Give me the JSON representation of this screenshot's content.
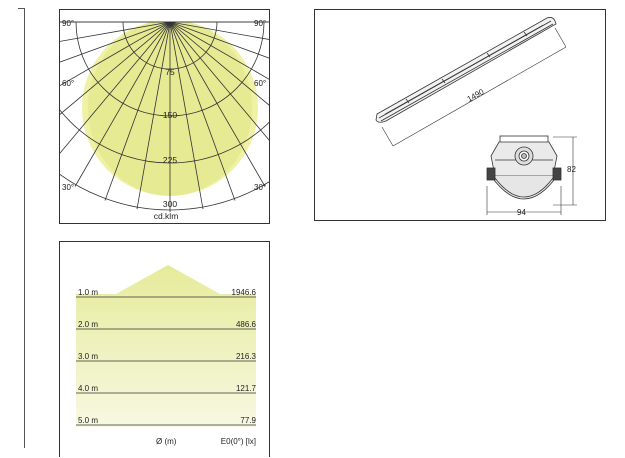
{
  "polar": {
    "radial_labels": [
      "75",
      "150",
      "225",
      "300"
    ],
    "angle_labels": {
      "top_left": "90°",
      "top_right": "90°",
      "mid_left": "60°",
      "mid_right": "60°",
      "low_left": "30°",
      "low_right": "30°"
    },
    "unit": "cd.klm",
    "fill_color": "#eef0a0",
    "curve_color": "#dfe685"
  },
  "dimensions": {
    "length": "1490",
    "height": "82",
    "width": "94"
  },
  "cone": {
    "rows": [
      {
        "distance": "1.0 m",
        "illuminance": "1946.6"
      },
      {
        "distance": "2.0 m",
        "illuminance": "486.6"
      },
      {
        "distance": "3.0 m",
        "illuminance": "216.3"
      },
      {
        "distance": "4.0 m",
        "illuminance": "121.7"
      },
      {
        "distance": "5.0 m",
        "illuminance": "77.9"
      }
    ],
    "footer_diameter": "Ø (m)",
    "footer_illuminance": "E0(0°) [lx]",
    "top_color": "#e6eb9a",
    "bottom_color": "#f7f8e2"
  }
}
